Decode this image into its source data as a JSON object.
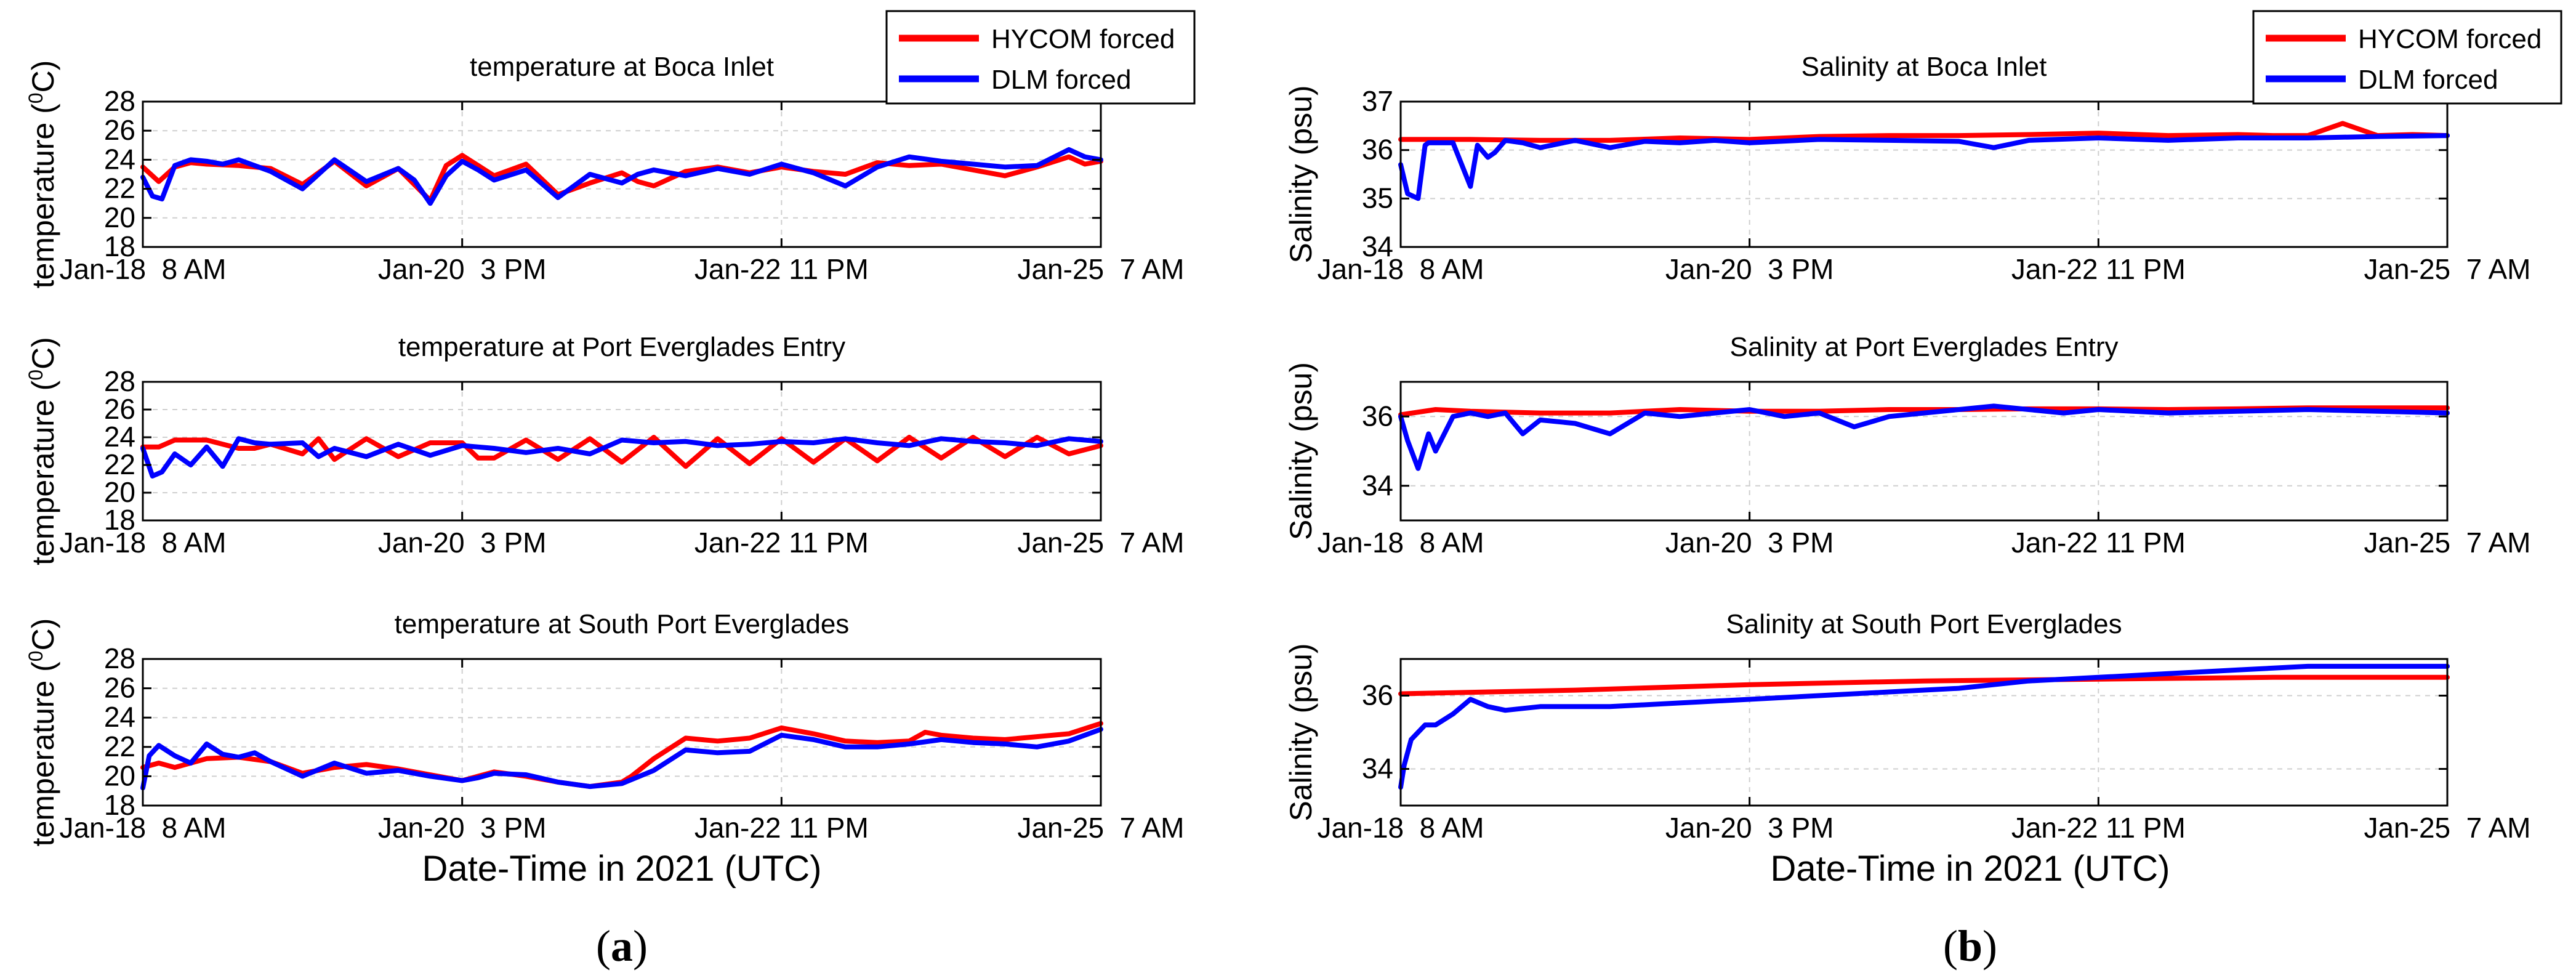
{
  "figure": {
    "x_axis_label": "Date-Time in 2021 (UTC)",
    "x_tick_labels": [
      "Jan-18  8 AM",
      "Jan-20  3 PM",
      "Jan-22 11 PM",
      "Jan-25  7 AM"
    ],
    "panel_a_caption": {
      "open": "(",
      "letter": "a",
      "close": ")"
    },
    "panel_b_caption": {
      "open": "(",
      "letter": "b",
      "close": ")"
    }
  },
  "legend": {
    "series": [
      {
        "name": "HYCOM forced",
        "color": "#ff0000"
      },
      {
        "name": "DLM forced",
        "color": "#0000ff"
      }
    ]
  },
  "chart_data": [
    {
      "type": "line",
      "column": "a",
      "row": 0,
      "title": "temperature at Boca Inlet",
      "ylabel": {
        "main": "temperature (",
        "sup": "0",
        "tail": "C)"
      },
      "xlabel": "",
      "x_ticks": [
        0,
        1,
        2,
        3
      ],
      "x_tick_labels": [
        "Jan-18  8 AM",
        "Jan-20  3 PM",
        "Jan-22 11 PM",
        "Jan-25  7 AM"
      ],
      "xlim": [
        0,
        3
      ],
      "ylim": [
        18,
        28
      ],
      "yticks": [
        18,
        20,
        22,
        24,
        26,
        28
      ],
      "grid": true,
      "legend": "top-right",
      "series": [
        {
          "name": "HYCOM forced",
          "color": "#ff0000",
          "x": [
            0,
            0.05,
            0.1,
            0.15,
            0.2,
            0.3,
            0.4,
            0.5,
            0.6,
            0.7,
            0.8,
            0.85,
            0.9,
            0.95,
            1.0,
            1.05,
            1.1,
            1.2,
            1.3,
            1.4,
            1.5,
            1.55,
            1.6,
            1.7,
            1.8,
            1.9,
            2.0,
            2.1,
            2.2,
            2.3,
            2.4,
            2.5,
            2.6,
            2.7,
            2.8,
            2.9,
            2.95,
            3.0
          ],
          "y": [
            23.5,
            22.5,
            23.5,
            23.8,
            23.7,
            23.6,
            23.4,
            22.3,
            23.9,
            22.2,
            23.4,
            22.3,
            21.2,
            23.6,
            24.3,
            23.6,
            22.9,
            23.7,
            21.6,
            22.4,
            23.1,
            22.5,
            22.2,
            23.2,
            23.5,
            23.1,
            23.5,
            23.2,
            23.0,
            23.8,
            23.6,
            23.7,
            23.3,
            22.9,
            23.5,
            24.2,
            23.7,
            23.9
          ]
        },
        {
          "name": "DLM forced",
          "color": "#0000ff",
          "x": [
            0,
            0.03,
            0.06,
            0.1,
            0.15,
            0.2,
            0.25,
            0.3,
            0.4,
            0.5,
            0.6,
            0.7,
            0.8,
            0.85,
            0.9,
            0.95,
            1.0,
            1.05,
            1.1,
            1.2,
            1.3,
            1.4,
            1.5,
            1.55,
            1.6,
            1.7,
            1.8,
            1.9,
            2.0,
            2.1,
            2.2,
            2.3,
            2.4,
            2.5,
            2.6,
            2.7,
            2.8,
            2.9,
            2.95,
            3.0
          ],
          "y": [
            22.8,
            21.5,
            21.3,
            23.6,
            24.0,
            23.9,
            23.7,
            24.0,
            23.2,
            22.0,
            24.0,
            22.5,
            23.4,
            22.6,
            21.0,
            22.9,
            23.9,
            23.3,
            22.6,
            23.3,
            21.4,
            23.0,
            22.4,
            23.0,
            23.3,
            22.9,
            23.4,
            23.0,
            23.7,
            23.1,
            22.2,
            23.5,
            24.2,
            23.9,
            23.7,
            23.5,
            23.6,
            24.7,
            24.2,
            24.0
          ]
        }
      ]
    },
    {
      "type": "line",
      "column": "a",
      "row": 1,
      "title": "temperature at Port Everglades Entry",
      "ylabel": {
        "main": "temperature (",
        "sup": "0",
        "tail": "C)"
      },
      "xlabel": "",
      "x_ticks": [
        0,
        1,
        2,
        3
      ],
      "x_tick_labels": [
        "Jan-18  8 AM",
        "Jan-20  3 PM",
        "Jan-22 11 PM",
        "Jan-25  7 AM"
      ],
      "xlim": [
        0,
        3
      ],
      "ylim": [
        18,
        28
      ],
      "yticks": [
        18,
        20,
        22,
        24,
        26,
        28
      ],
      "grid": true,
      "series": [
        {
          "name": "HYCOM forced",
          "color": "#ff0000",
          "x": [
            0,
            0.05,
            0.1,
            0.2,
            0.3,
            0.35,
            0.4,
            0.5,
            0.55,
            0.6,
            0.7,
            0.8,
            0.9,
            1.0,
            1.05,
            1.1,
            1.2,
            1.3,
            1.4,
            1.5,
            1.6,
            1.7,
            1.8,
            1.9,
            2.0,
            2.1,
            2.2,
            2.3,
            2.4,
            2.5,
            2.6,
            2.7,
            2.8,
            2.9,
            3.0
          ],
          "y": [
            23.3,
            23.3,
            23.8,
            23.8,
            23.2,
            23.2,
            23.5,
            22.8,
            23.9,
            22.4,
            23.9,
            22.6,
            23.6,
            23.6,
            22.5,
            22.5,
            23.8,
            22.4,
            23.9,
            22.2,
            24.0,
            21.9,
            23.9,
            22.1,
            23.9,
            22.2,
            23.9,
            22.3,
            24.0,
            22.5,
            24.0,
            22.6,
            24.0,
            22.8,
            23.4
          ]
        },
        {
          "name": "DLM forced",
          "color": "#0000ff",
          "x": [
            0,
            0.03,
            0.06,
            0.1,
            0.15,
            0.2,
            0.25,
            0.3,
            0.35,
            0.4,
            0.5,
            0.55,
            0.6,
            0.7,
            0.8,
            0.9,
            1.0,
            1.1,
            1.2,
            1.3,
            1.4,
            1.5,
            1.6,
            1.7,
            1.8,
            1.9,
            2.0,
            2.1,
            2.2,
            2.3,
            2.4,
            2.5,
            2.6,
            2.7,
            2.8,
            2.9,
            3.0
          ],
          "y": [
            23.2,
            21.2,
            21.5,
            22.8,
            22.0,
            23.3,
            21.9,
            23.9,
            23.6,
            23.5,
            23.6,
            22.6,
            23.2,
            22.6,
            23.5,
            22.7,
            23.4,
            23.2,
            22.9,
            23.2,
            22.8,
            23.8,
            23.6,
            23.7,
            23.4,
            23.5,
            23.7,
            23.6,
            23.9,
            23.6,
            23.4,
            23.9,
            23.7,
            23.6,
            23.4,
            23.9,
            23.7
          ]
        }
      ]
    },
    {
      "type": "line",
      "column": "a",
      "row": 2,
      "title": "temperature at South Port Everglades",
      "ylabel": {
        "main": "temperature (",
        "sup": "0",
        "tail": "C)"
      },
      "xlabel": "Date-Time in 2021 (UTC)",
      "x_ticks": [
        0,
        1,
        2,
        3
      ],
      "x_tick_labels": [
        "Jan-18  8 AM",
        "Jan-20  3 PM",
        "Jan-22 11 PM",
        "Jan-25  7 AM"
      ],
      "xlim": [
        0,
        3
      ],
      "ylim": [
        18,
        28
      ],
      "yticks": [
        18,
        20,
        22,
        24,
        26,
        28
      ],
      "grid": true,
      "series": [
        {
          "name": "HYCOM forced",
          "color": "#ff0000",
          "x": [
            0,
            0.05,
            0.1,
            0.2,
            0.3,
            0.4,
            0.5,
            0.6,
            0.7,
            0.8,
            0.9,
            1.0,
            1.05,
            1.1,
            1.2,
            1.3,
            1.4,
            1.5,
            1.53,
            1.6,
            1.7,
            1.8,
            1.9,
            2.0,
            2.1,
            2.2,
            2.3,
            2.4,
            2.45,
            2.5,
            2.6,
            2.7,
            2.8,
            2.9,
            3.0
          ],
          "y": [
            20.6,
            20.9,
            20.6,
            21.2,
            21.3,
            21.0,
            20.2,
            20.6,
            20.8,
            20.5,
            20.1,
            19.7,
            20.0,
            20.3,
            20.0,
            19.6,
            19.3,
            19.6,
            20.0,
            21.2,
            22.6,
            22.4,
            22.6,
            23.3,
            22.9,
            22.4,
            22.3,
            22.4,
            23.0,
            22.8,
            22.6,
            22.5,
            22.7,
            22.9,
            23.6
          ]
        },
        {
          "name": "DLM forced",
          "color": "#0000ff",
          "x": [
            0,
            0.02,
            0.05,
            0.1,
            0.15,
            0.2,
            0.25,
            0.3,
            0.35,
            0.4,
            0.5,
            0.6,
            0.7,
            0.8,
            0.9,
            1.0,
            1.05,
            1.1,
            1.2,
            1.3,
            1.4,
            1.5,
            1.6,
            1.7,
            1.8,
            1.9,
            2.0,
            2.1,
            2.2,
            2.3,
            2.4,
            2.5,
            2.6,
            2.7,
            2.8,
            2.9,
            3.0
          ],
          "y": [
            19.2,
            21.4,
            22.1,
            21.4,
            20.9,
            22.2,
            21.5,
            21.3,
            21.6,
            21.0,
            20.0,
            20.9,
            20.2,
            20.4,
            20.0,
            19.7,
            19.9,
            20.2,
            20.1,
            19.6,
            19.3,
            19.5,
            20.4,
            21.8,
            21.6,
            21.7,
            22.8,
            22.5,
            22.0,
            22.0,
            22.2,
            22.5,
            22.3,
            22.2,
            22.0,
            22.4,
            23.2
          ]
        }
      ]
    },
    {
      "type": "line",
      "column": "b",
      "row": 0,
      "title": "Salinity at Boca Inlet",
      "ylabel": {
        "main": "Salinity (psu)",
        "sup": "",
        "tail": ""
      },
      "xlabel": "",
      "x_ticks": [
        0,
        1,
        2,
        3
      ],
      "x_tick_labels": [
        "Jan-18  8 AM",
        "Jan-20  3 PM",
        "Jan-22 11 PM",
        "Jan-25  7 AM"
      ],
      "xlim": [
        0,
        3
      ],
      "ylim": [
        34,
        37
      ],
      "yticks": [
        34,
        35,
        36,
        37
      ],
      "grid": true,
      "legend": "top-right",
      "series": [
        {
          "name": "HYCOM forced",
          "color": "#ff0000",
          "x": [
            0,
            0.2,
            0.4,
            0.6,
            0.8,
            1.0,
            1.2,
            1.4,
            1.6,
            1.8,
            2.0,
            2.2,
            2.4,
            2.5,
            2.6,
            2.7,
            2.8,
            2.9,
            3.0
          ],
          "y": [
            36.22,
            36.22,
            36.2,
            36.2,
            36.25,
            36.22,
            36.28,
            36.3,
            36.3,
            36.32,
            36.35,
            36.3,
            36.32,
            36.3,
            36.3,
            36.55,
            36.3,
            36.32,
            36.3
          ]
        },
        {
          "name": "DLM forced",
          "color": "#0000ff",
          "x": [
            0,
            0.02,
            0.05,
            0.07,
            0.08,
            0.1,
            0.15,
            0.2,
            0.22,
            0.25,
            0.27,
            0.3,
            0.35,
            0.4,
            0.5,
            0.6,
            0.7,
            0.8,
            0.9,
            1.0,
            1.2,
            1.4,
            1.6,
            1.7,
            1.8,
            2.0,
            2.2,
            2.4,
            2.6,
            2.8,
            3.0
          ],
          "y": [
            35.7,
            35.1,
            35.0,
            36.1,
            36.15,
            36.15,
            36.15,
            35.25,
            36.1,
            35.85,
            35.95,
            36.2,
            36.15,
            36.05,
            36.2,
            36.05,
            36.18,
            36.15,
            36.2,
            36.15,
            36.22,
            36.2,
            36.18,
            36.05,
            36.2,
            36.25,
            36.2,
            36.25,
            36.25,
            36.28,
            36.3
          ]
        }
      ]
    },
    {
      "type": "line",
      "column": "b",
      "row": 1,
      "title": "Salinity at Port Everglades Entry",
      "ylabel": {
        "main": "Salinity (psu)",
        "sup": "",
        "tail": ""
      },
      "xlabel": "",
      "x_ticks": [
        0,
        1,
        2,
        3
      ],
      "x_tick_labels": [
        "Jan-18  8 AM",
        "Jan-20  3 PM",
        "Jan-22 11 PM",
        "Jan-25  7 AM"
      ],
      "xlim": [
        0,
        3
      ],
      "ylim": [
        33,
        37
      ],
      "yticks": [
        34,
        36
      ],
      "grid": true,
      "series": [
        {
          "name": "HYCOM forced",
          "color": "#ff0000",
          "x": [
            0,
            0.1,
            0.2,
            0.4,
            0.6,
            0.8,
            1.0,
            1.2,
            1.4,
            1.6,
            1.8,
            2.0,
            2.2,
            2.4,
            2.6,
            2.8,
            3.0
          ],
          "y": [
            36.05,
            36.2,
            36.15,
            36.1,
            36.1,
            36.2,
            36.15,
            36.15,
            36.2,
            36.2,
            36.22,
            36.22,
            36.2,
            36.22,
            36.25,
            36.25,
            36.25
          ]
        },
        {
          "name": "DLM forced",
          "color": "#0000ff",
          "x": [
            0,
            0.02,
            0.05,
            0.08,
            0.1,
            0.15,
            0.2,
            0.25,
            0.3,
            0.35,
            0.4,
            0.5,
            0.6,
            0.7,
            0.8,
            0.9,
            1.0,
            1.1,
            1.2,
            1.3,
            1.4,
            1.5,
            1.6,
            1.7,
            1.8,
            1.9,
            2.0,
            2.2,
            2.4,
            2.6,
            2.8,
            3.0
          ],
          "y": [
            36.0,
            35.3,
            34.5,
            35.5,
            35.0,
            36.0,
            36.1,
            36.0,
            36.1,
            35.5,
            35.9,
            35.8,
            35.5,
            36.1,
            36.0,
            36.1,
            36.2,
            36.0,
            36.1,
            35.7,
            36.0,
            36.1,
            36.2,
            36.3,
            36.2,
            36.1,
            36.2,
            36.1,
            36.15,
            36.2,
            36.15,
            36.1
          ]
        }
      ]
    },
    {
      "type": "line",
      "column": "b",
      "row": 2,
      "title": "Salinity at South Port Everglades",
      "ylabel": {
        "main": "Salinity (psu)",
        "sup": "",
        "tail": ""
      },
      "xlabel": "Date-Time in 2021 (UTC)",
      "x_ticks": [
        0,
        1,
        2,
        3
      ],
      "x_tick_labels": [
        "Jan-18  8 AM",
        "Jan-20  3 PM",
        "Jan-22 11 PM",
        "Jan-25  7 AM"
      ],
      "xlim": [
        0,
        3
      ],
      "ylim": [
        33,
        37
      ],
      "yticks": [
        34,
        36
      ],
      "grid": true,
      "series": [
        {
          "name": "HYCOM forced",
          "color": "#ff0000",
          "x": [
            0,
            0.5,
            1.0,
            1.5,
            2.0,
            2.5,
            3.0
          ],
          "y": [
            36.05,
            36.15,
            36.3,
            36.4,
            36.45,
            36.5,
            36.5
          ]
        },
        {
          "name": "DLM forced",
          "color": "#0000ff",
          "x": [
            0,
            0.01,
            0.03,
            0.07,
            0.1,
            0.15,
            0.2,
            0.25,
            0.3,
            0.4,
            0.6,
            0.8,
            1.0,
            1.2,
            1.4,
            1.6,
            1.8,
            2.0,
            2.2,
            2.4,
            2.6,
            2.8,
            3.0
          ],
          "y": [
            33.5,
            34.1,
            34.8,
            35.2,
            35.2,
            35.5,
            35.9,
            35.7,
            35.6,
            35.7,
            35.7,
            35.8,
            35.9,
            36.0,
            36.1,
            36.2,
            36.4,
            36.5,
            36.6,
            36.7,
            36.8,
            36.8,
            36.8
          ]
        }
      ]
    }
  ]
}
